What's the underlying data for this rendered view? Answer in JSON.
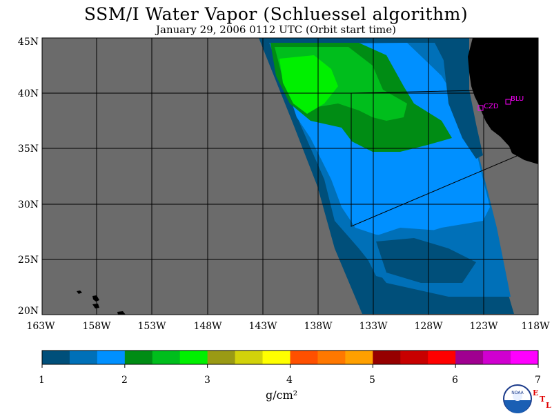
{
  "title": "SSM/I Water Vapor (Schluessel algorithm)",
  "subtitle": "January 29, 2006  0112 UTC  (Orbit start time)",
  "map": {
    "lat_labels": [
      "45N",
      "40N",
      "35N",
      "30N",
      "25N",
      "20N"
    ],
    "lon_labels": [
      "163W",
      "158W",
      "153W",
      "148W",
      "143W",
      "138W",
      "133W",
      "128W",
      "123W",
      "118W"
    ],
    "stations": [
      {
        "label": "CZD"
      },
      {
        "label": "BLU"
      }
    ],
    "colors": {
      "no_data": "#6b6b6b",
      "land": "#000000",
      "station": "#ff00ff"
    }
  },
  "colorbar": {
    "colors": [
      "#004f7a",
      "#0070b8",
      "#0090ff",
      "#008c14",
      "#00be1c",
      "#00f000",
      "#9a9a14",
      "#d2d20a",
      "#ffff00",
      "#ff5000",
      "#ff7800",
      "#ffa000",
      "#960000",
      "#c80000",
      "#ff0000",
      "#a00090",
      "#d000d0",
      "#ff00ff"
    ],
    "ticks": [
      "1",
      "2",
      "3",
      "4",
      "5",
      "6",
      "7"
    ],
    "unit": "g/cm²"
  },
  "logo": {
    "text": "NOAA",
    "letters": [
      "E",
      "T",
      "L"
    ]
  }
}
